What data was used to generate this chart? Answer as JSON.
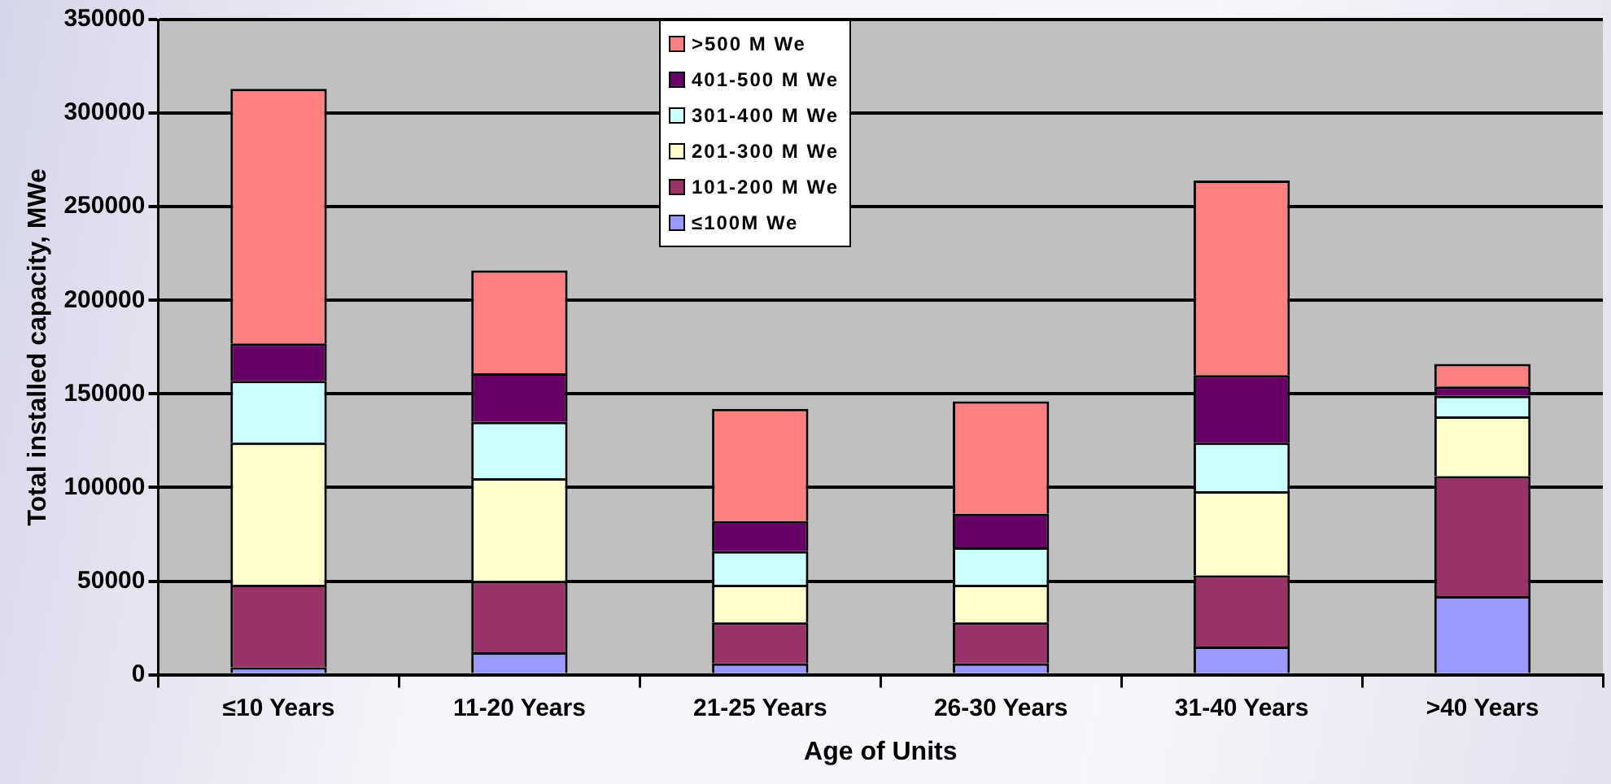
{
  "chart_data": {
    "type": "bar",
    "stacked": true,
    "xlabel": "Age of Units",
    "ylabel": "Total installed capacity, MWe",
    "categories": [
      "≤10 Years",
      "11-20 Years",
      "21-25 Years",
      "26-30 Years",
      "31-40 Years",
      ">40 Years"
    ],
    "series": [
      {
        "name": "≤100M We",
        "color": "#9999ff",
        "values": [
          4000,
          12000,
          6000,
          6000,
          15000,
          42000
        ]
      },
      {
        "name": "101-200 M We",
        "color": "#993366",
        "values": [
          44000,
          38000,
          22000,
          22000,
          38000,
          64000
        ]
      },
      {
        "name": "201-300 M We",
        "color": "#ffffcc",
        "values": [
          76000,
          55000,
          20000,
          20000,
          45000,
          32000
        ]
      },
      {
        "name": "301-400 M We",
        "color": "#ccffff",
        "values": [
          33000,
          30000,
          18000,
          20000,
          26000,
          11000
        ]
      },
      {
        "name": "401-500 M We",
        "color": "#660066",
        "values": [
          20000,
          26000,
          16000,
          18000,
          36000,
          5000
        ]
      },
      {
        "name": ">500 M We",
        "color": "#ff8080",
        "values": [
          136000,
          55000,
          60000,
          60000,
          104000,
          12000
        ]
      }
    ],
    "ylim": [
      0,
      350000
    ],
    "yticks": [
      0,
      50000,
      100000,
      150000,
      200000,
      250000,
      300000,
      350000
    ],
    "grid": "y",
    "legend": "top"
  }
}
